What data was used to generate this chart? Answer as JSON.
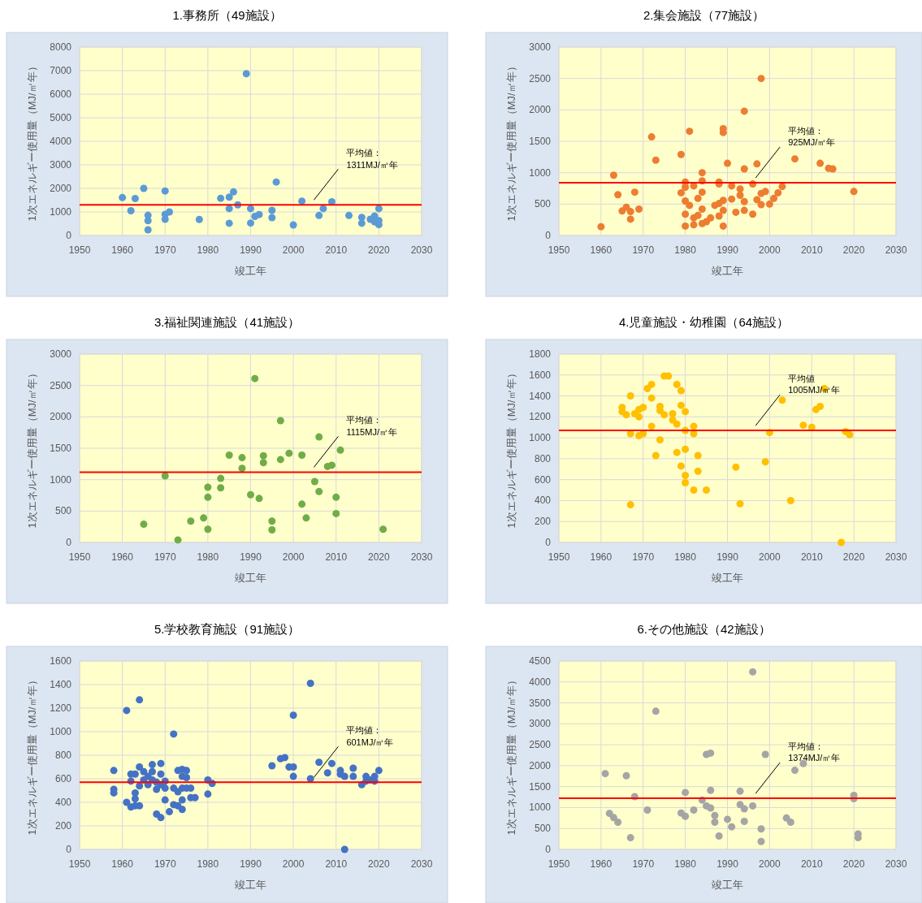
{
  "chart_data": [
    {
      "type": "scatter",
      "title": "1.事務所（49施設）",
      "xlabel": "竣工年",
      "ylabel": "1次エネルギー使用量（MJ/㎡年）",
      "color": "#5b9bd5",
      "marker": "circle",
      "grid": true,
      "xlim": [
        1950,
        2030
      ],
      "xticks": [
        1950,
        1960,
        1970,
        1980,
        1990,
        2000,
        2010,
        2020,
        2030
      ],
      "ylim": [
        0,
        8000
      ],
      "yticks": [
        0,
        1000,
        2000,
        3000,
        4000,
        5000,
        6000,
        7000,
        8000
      ],
      "x": [
        1960,
        1962,
        1963,
        1965,
        1966,
        1966,
        1966,
        1970,
        1970,
        1970,
        1971,
        1978,
        1983,
        1985,
        1985,
        1985,
        1986,
        1987,
        1989,
        1990,
        1990,
        1991,
        1992,
        1995,
        1995,
        1996,
        2000,
        2002,
        2006,
        2007,
        2009,
        2013,
        2016,
        2016,
        2018,
        2019,
        2019,
        2020,
        2020,
        2020
      ],
      "values": [
        1610,
        1050,
        1570,
        2000,
        860,
        630,
        240,
        1890,
        900,
        690,
        1000,
        680,
        1580,
        1630,
        1140,
        520,
        1850,
        1300,
        6870,
        1140,
        530,
        810,
        890,
        1070,
        760,
        2270,
        450,
        1460,
        850,
        1140,
        1430,
        850,
        770,
        520,
        690,
        830,
        580,
        630,
        1140,
        460
      ],
      "ref_lines": [
        {
          "axis": "y",
          "value": 1300,
          "color": "#ff0000"
        }
      ],
      "annotations": [
        "平均値：\n1311MJ/㎡年"
      ]
    },
    {
      "type": "scatter",
      "title": "2.集会施設（77施設）",
      "xlabel": "竣工年",
      "ylabel": "1次エネルギー使用量（MJ/㎡年）",
      "color": "#ed7d31",
      "marker": "circle",
      "grid": true,
      "xlim": [
        1950,
        2030
      ],
      "xticks": [
        1950,
        1960,
        1970,
        1980,
        1990,
        2000,
        2010,
        2020,
        2030
      ],
      "ylim": [
        0,
        3000
      ],
      "yticks": [
        0,
        500,
        1000,
        1500,
        2000,
        2500,
        3000
      ],
      "x": [
        1960,
        1963,
        1964,
        1965,
        1966,
        1967,
        1967,
        1968,
        1969,
        1972,
        1973,
        1979,
        1979,
        1980,
        1980,
        1980,
        1980,
        1980,
        1981,
        1981,
        1982,
        1982,
        1982,
        1983,
        1983,
        1984,
        1984,
        1984,
        1984,
        1984,
        1985,
        1986,
        1987,
        1988,
        1988,
        1988,
        1988,
        1989,
        1989,
        1989,
        1989,
        1989,
        1990,
        1991,
        1991,
        1992,
        1993,
        1993,
        1994,
        1994,
        1994,
        1994,
        1996,
        1996,
        1997,
        1997,
        1998,
        1998,
        1998,
        1999,
        2000,
        2001,
        2002,
        2003,
        2006,
        2012,
        2014,
        2015,
        2020
      ],
      "values": [
        140,
        960,
        650,
        390,
        450,
        380,
        260,
        690,
        420,
        1570,
        1200,
        1290,
        680,
        850,
        770,
        550,
        340,
        150,
        1660,
        480,
        790,
        280,
        170,
        590,
        320,
        1000,
        870,
        690,
        420,
        190,
        220,
        280,
        480,
        850,
        820,
        510,
        310,
        1700,
        1640,
        560,
        400,
        150,
        1150,
        790,
        580,
        370,
        740,
        640,
        1980,
        1060,
        540,
        400,
        820,
        340,
        1140,
        570,
        2500,
        670,
        490,
        700,
        500,
        590,
        680,
        780,
        1220,
        1150,
        1070,
        1060,
        700
      ],
      "ref_lines": [
        {
          "axis": "y",
          "value": 840,
          "color": "#ff0000"
        }
      ],
      "annotations": [
        "平均値：\n925MJ/㎡年"
      ]
    },
    {
      "type": "scatter",
      "title": "3.福祉関連施設（41施設）",
      "xlabel": "竣工年",
      "ylabel": "1次エネルギー使用量（MJ/㎡年）",
      "color": "#70ad47",
      "marker": "circle",
      "grid": true,
      "xlim": [
        1950,
        2030
      ],
      "xticks": [
        1950,
        1960,
        1970,
        1980,
        1990,
        2000,
        2010,
        2020,
        2030
      ],
      "ylim": [
        0,
        3000
      ],
      "yticks": [
        0,
        500,
        1000,
        1500,
        2000,
        2500,
        3000
      ],
      "x": [
        1965,
        1970,
        1973,
        1976,
        1979,
        1980,
        1980,
        1980,
        1983,
        1983,
        1985,
        1988,
        1988,
        1990,
        1991,
        1992,
        1993,
        1993,
        1995,
        1995,
        1997,
        1997,
        1999,
        2002,
        2002,
        2003,
        2005,
        2006,
        2006,
        2008,
        2009,
        2010,
        2010,
        2011,
        2021
      ],
      "values": [
        290,
        1060,
        40,
        340,
        390,
        880,
        720,
        210,
        1020,
        870,
        1390,
        1350,
        1180,
        760,
        2610,
        700,
        1380,
        1270,
        340,
        200,
        1940,
        1320,
        1420,
        1390,
        610,
        390,
        970,
        1680,
        810,
        1210,
        1230,
        720,
        460,
        1470,
        210
      ],
      "ref_lines": [
        {
          "axis": "y",
          "value": 1120,
          "color": "#ff0000"
        }
      ],
      "annotations": [
        "平均値：\n1115MJ/㎡年"
      ]
    },
    {
      "type": "scatter",
      "title": "4.児童施設・幼稚園（64施設）",
      "xlabel": "竣工年",
      "ylabel": "1次エネルギー使用量（MJ/㎡年）",
      "color": "#ffc000",
      "marker": "circle",
      "grid": true,
      "xlim": [
        1950,
        2030
      ],
      "xticks": [
        1950,
        1960,
        1970,
        1980,
        1990,
        2000,
        2010,
        2020,
        2030
      ],
      "ylim": [
        0,
        1800
      ],
      "yticks": [
        0,
        200,
        400,
        600,
        800,
        1000,
        1200,
        1400,
        1600,
        1800
      ],
      "x": [
        1965,
        1965,
        1966,
        1967,
        1967,
        1967,
        1968,
        1969,
        1969,
        1969,
        1970,
        1970,
        1971,
        1972,
        1972,
        1972,
        1973,
        1974,
        1974,
        1974,
        1975,
        1975,
        1976,
        1977,
        1977,
        1978,
        1978,
        1978,
        1979,
        1979,
        1979,
        1980,
        1980,
        1980,
        1980,
        1980,
        1982,
        1982,
        1982,
        1983,
        1983,
        1985,
        1992,
        1993,
        1999,
        2000,
        2003,
        2005,
        2008,
        2010,
        2011,
        2012,
        2013,
        2017,
        2018,
        2019
      ],
      "values": [
        1290,
        1250,
        1220,
        1400,
        1040,
        360,
        1230,
        1270,
        1200,
        1020,
        1290,
        1040,
        1470,
        1510,
        1380,
        1110,
        830,
        1300,
        1260,
        980,
        1220,
        1590,
        1590,
        1230,
        1170,
        1510,
        1130,
        860,
        1450,
        1310,
        730,
        1250,
        1070,
        890,
        640,
        570,
        1110,
        1040,
        500,
        830,
        680,
        500,
        720,
        370,
        770,
        1050,
        1360,
        400,
        1120,
        1100,
        1270,
        1300,
        1470,
        0,
        1060,
        1030
      ],
      "ref_lines": [
        {
          "axis": "y",
          "value": 1070,
          "color": "#ff0000"
        }
      ],
      "annotations": [
        "平均値\n1005MJ/㎡年"
      ]
    },
    {
      "type": "scatter",
      "title": "5.学校教育施設（91施設）",
      "xlabel": "竣工年",
      "ylabel": "1次エネルギー使用量（MJ/㎡年）",
      "color": "#4472c4",
      "marker": "circle",
      "grid": true,
      "xlim": [
        1950,
        2030
      ],
      "xticks": [
        1950,
        1960,
        1970,
        1980,
        1990,
        2000,
        2010,
        2020,
        2030
      ],
      "ylim": [
        0,
        1600
      ],
      "yticks": [
        0,
        200,
        400,
        600,
        800,
        1000,
        1200,
        1400,
        1600
      ],
      "x": [
        1958,
        1958,
        1958,
        1961,
        1961,
        1962,
        1962,
        1962,
        1963,
        1963,
        1963,
        1963,
        1964,
        1964,
        1964,
        1964,
        1965,
        1965,
        1966,
        1966,
        1967,
        1967,
        1967,
        1968,
        1968,
        1968,
        1969,
        1969,
        1969,
        1969,
        1970,
        1970,
        1970,
        1971,
        1972,
        1972,
        1972,
        1973,
        1973,
        1973,
        1974,
        1974,
        1974,
        1974,
        1974,
        1975,
        1975,
        1975,
        1976,
        1976,
        1977,
        1980,
        1980,
        1981,
        1995,
        1997,
        1998,
        1999,
        2000,
        2000,
        2000,
        2004,
        2004,
        2006,
        2008,
        2009,
        2011,
        2011,
        2012,
        2012,
        2014,
        2014,
        2016,
        2017,
        2017,
        2018,
        2019,
        2019,
        2020
      ],
      "values": [
        670,
        510,
        480,
        1180,
        400,
        640,
        580,
        360,
        640,
        480,
        430,
        370,
        1270,
        700,
        540,
        370,
        660,
        590,
        620,
        550,
        720,
        660,
        590,
        570,
        510,
        300,
        730,
        640,
        550,
        270,
        580,
        520,
        420,
        320,
        980,
        520,
        380,
        670,
        490,
        370,
        680,
        620,
        520,
        420,
        340,
        670,
        610,
        520,
        520,
        440,
        440,
        590,
        470,
        560,
        710,
        770,
        780,
        700,
        700,
        1140,
        620,
        1410,
        600,
        740,
        650,
        730,
        670,
        640,
        620,
        0,
        690,
        620,
        550,
        620,
        580,
        590,
        620,
        580,
        670
      ],
      "ref_lines": [
        {
          "axis": "y",
          "value": 570,
          "color": "#ff0000"
        }
      ],
      "annotations": [
        "平均値：\n601MJ/㎡年"
      ]
    },
    {
      "type": "scatter",
      "title": "6.その他施設（42施設）",
      "xlabel": "竣工年",
      "ylabel": "1次エネルギー使用量（MJ/㎡年）",
      "color": "#a5a5a5",
      "marker": "circle",
      "grid": true,
      "xlim": [
        1950,
        2030
      ],
      "xticks": [
        1950,
        1960,
        1970,
        1980,
        1990,
        2000,
        2010,
        2020,
        2030
      ],
      "ylim": [
        0,
        4500
      ],
      "yticks": [
        0,
        500,
        1000,
        1500,
        2000,
        2500,
        3000,
        3500,
        4000,
        4500
      ],
      "x": [
        1961,
        1962,
        1963,
        1964,
        1966,
        1967,
        1968,
        1971,
        1973,
        1979,
        1980,
        1980,
        1982,
        1984,
        1985,
        1986,
        1985,
        1986,
        1986,
        1987,
        1987,
        1988,
        1990,
        1991,
        1993,
        1993,
        1994,
        1994,
        1996,
        1996,
        1998,
        1998,
        1999,
        2004,
        2005,
        2006,
        2008,
        2020,
        2020,
        2021,
        2021
      ],
      "values": [
        1810,
        860,
        760,
        650,
        1760,
        280,
        1260,
        940,
        3300,
        870,
        1360,
        790,
        940,
        1180,
        2270,
        2300,
        1040,
        1410,
        990,
        810,
        650,
        320,
        720,
        540,
        1390,
        1070,
        970,
        670,
        4240,
        1040,
        490,
        190,
        2270,
        750,
        650,
        1890,
        2050,
        1290,
        1210,
        370,
        280
      ],
      "ref_lines": [
        {
          "axis": "y",
          "value": 1220,
          "color": "#ff0000"
        }
      ],
      "annotations": [
        "平均値：\n1374MJ/㎡年"
      ]
    }
  ]
}
